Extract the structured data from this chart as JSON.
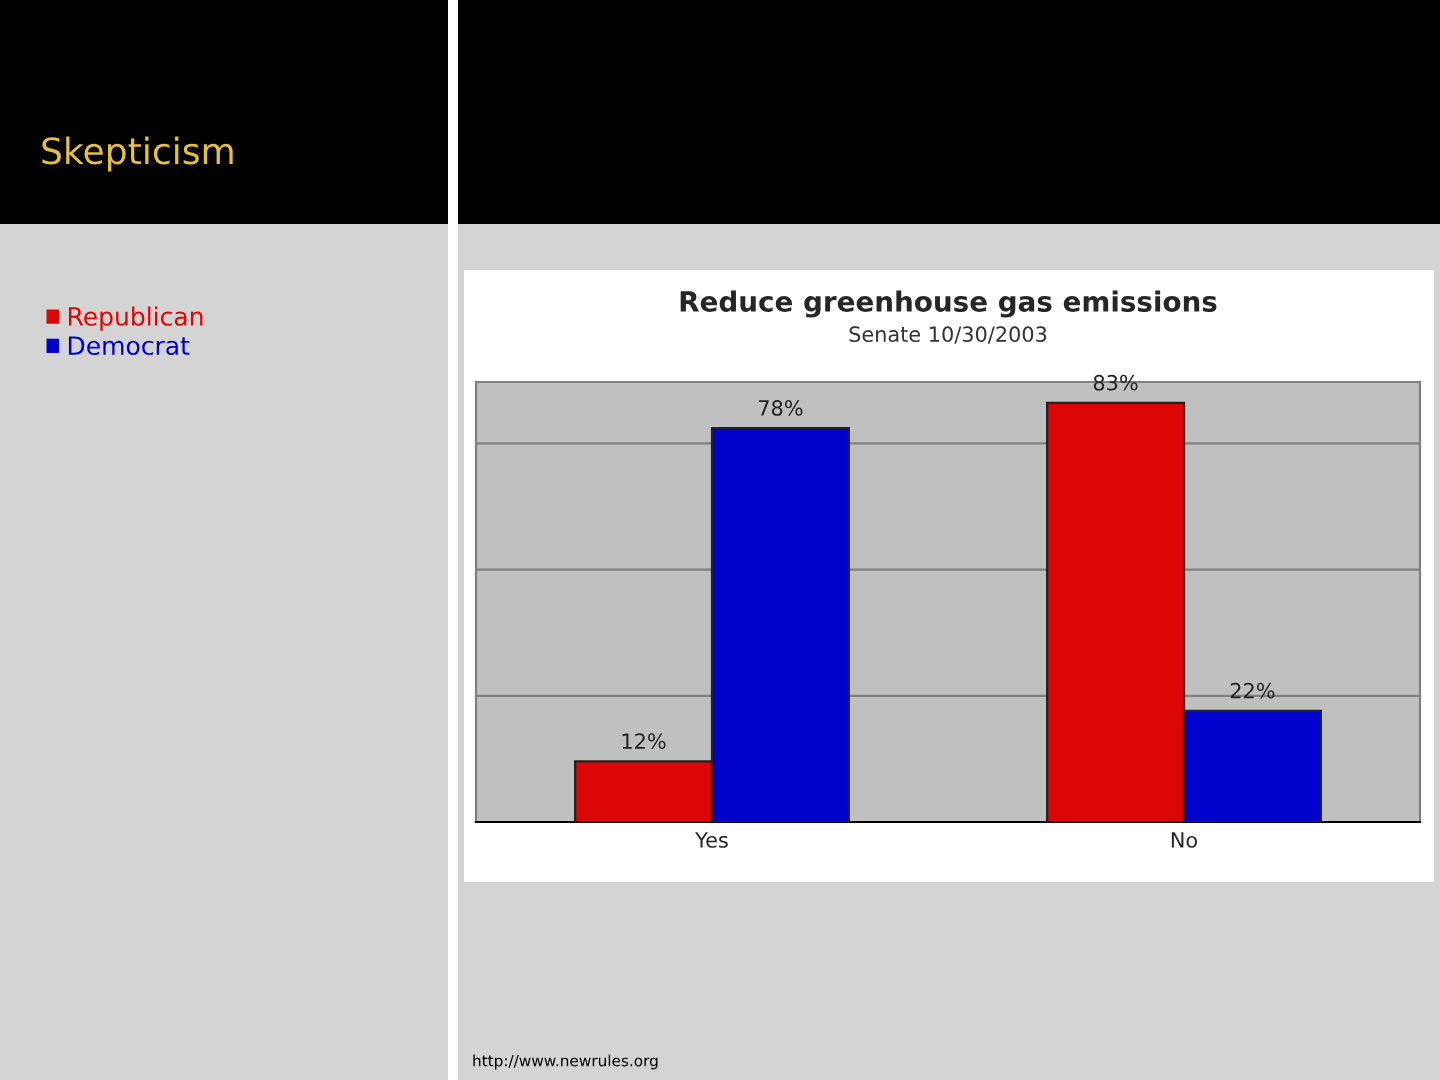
{
  "chart_data": {
    "type": "bar",
    "title": "Reduce greenhouse gas emissions",
    "subtitle": "Senate 10/30/2003",
    "categories": [
      "Yes",
      "No"
    ],
    "series": [
      {
        "name": "Republican",
        "color": "#dd0606",
        "values": [
          12,
          83
        ],
        "value_labels": [
          "12%",
          "83%"
        ]
      },
      {
        "name": "Democrat",
        "color": "#0000cc",
        "values": [
          78,
          22
        ],
        "value_labels": [
          "78%",
          "22%"
        ]
      }
    ],
    "grid": "y",
    "legend": "left",
    "tick_labels": "x",
    "annotations": [
      "Skepticism",
      "http://www.newrules.org"
    ]
  }
}
